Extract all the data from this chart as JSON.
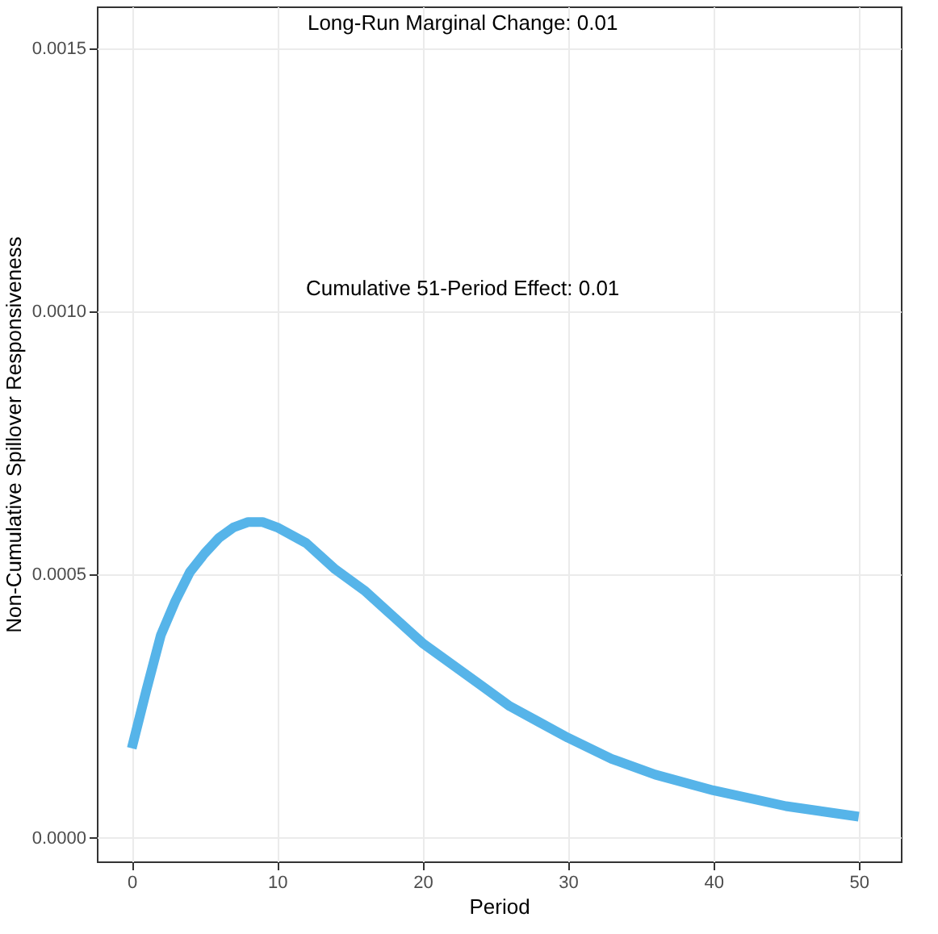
{
  "chart_data": {
    "type": "line",
    "xlabel": "Period",
    "ylabel": "Non-Cumulative Spillover Responsiveness",
    "annotations": [
      "Long-Run Marginal Change: 0.01",
      "Cumulative 51-Period Effect: 0.01"
    ],
    "x": [
      0,
      1,
      2,
      3,
      4,
      5,
      6,
      7,
      8,
      9,
      10,
      12,
      14,
      16,
      18,
      20,
      22,
      24,
      26,
      28,
      30,
      33,
      36,
      40,
      45,
      50
    ],
    "series": [
      {
        "color": "#56b4e9",
        "values": [
          0.00017,
          0.00028,
          0.000385,
          0.00045,
          0.000505,
          0.00054,
          0.00057,
          0.00059,
          0.0006,
          0.0006,
          0.00059,
          0.00056,
          0.00051,
          0.00047,
          0.00042,
          0.00037,
          0.00033,
          0.00029,
          0.00025,
          0.00022,
          0.00019,
          0.00015,
          0.00012,
          9e-05,
          6e-05,
          4e-05
        ]
      }
    ],
    "xlim": [
      -2.4,
      52.9
    ],
    "xticks": [
      0,
      10,
      20,
      30,
      40,
      50
    ],
    "ylim": [
      -4.5e-05,
      0.00158
    ],
    "yticks": [
      {
        "value": 0,
        "label": "0.0000"
      },
      {
        "value": 0.0005,
        "label": "0.0005"
      },
      {
        "value": 0.001,
        "label": "0.0010"
      },
      {
        "value": 0.0015,
        "label": "0.0015"
      }
    ],
    "grid": true,
    "line_style": "solid",
    "marker": "none"
  }
}
